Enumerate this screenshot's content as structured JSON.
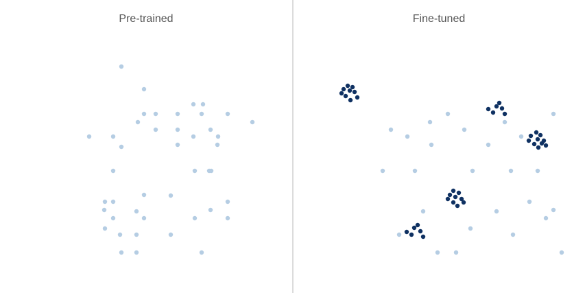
{
  "colors": {
    "light": "#b5cde3",
    "dark": "#0f3162",
    "divider": "#d0d0d0",
    "title": "#555555"
  },
  "chart_data": [
    {
      "type": "scatter",
      "title": "Pre-trained",
      "xlim": [
        0,
        426
      ],
      "ylim": [
        0,
        427
      ],
      "series": [
        {
          "color": "#b5cde3",
          "points": [
            [
              177,
              97
            ],
            [
              210,
              130
            ],
            [
              210,
              166
            ],
            [
              227,
              166
            ],
            [
              259,
              166
            ],
            [
              282,
              152
            ],
            [
              296,
              152
            ],
            [
              294,
              166
            ],
            [
              332,
              166
            ],
            [
              201,
              178
            ],
            [
              368,
              178
            ],
            [
              227,
              189
            ],
            [
              259,
              189
            ],
            [
              307,
              189
            ],
            [
              130,
              199
            ],
            [
              165,
              199
            ],
            [
              282,
              199
            ],
            [
              318,
              199
            ],
            [
              177,
              214
            ],
            [
              259,
              211
            ],
            [
              317,
              211
            ],
            [
              165,
              249
            ],
            [
              284,
              249
            ],
            [
              305,
              249
            ],
            [
              308,
              249
            ],
            [
              210,
              284
            ],
            [
              249,
              285
            ],
            [
              153,
              294
            ],
            [
              165,
              294
            ],
            [
              332,
              294
            ],
            [
              152,
              306
            ],
            [
              199,
              308
            ],
            [
              307,
              306
            ],
            [
              165,
              318
            ],
            [
              210,
              318
            ],
            [
              284,
              318
            ],
            [
              332,
              318
            ],
            [
              153,
              333
            ],
            [
              175,
              342
            ],
            [
              199,
              342
            ],
            [
              249,
              342
            ],
            [
              177,
              368
            ],
            [
              199,
              368
            ],
            [
              294,
              368
            ]
          ]
        }
      ]
    },
    {
      "type": "scatter",
      "title": "Fine-tuned",
      "xlim": [
        426,
        853
      ],
      "ylim": [
        0,
        427
      ],
      "series": [
        {
          "color": "#b5cde3",
          "points": [
            [
              653,
              166
            ],
            [
              807,
              166
            ],
            [
              627,
              178
            ],
            [
              736,
              178
            ],
            [
              570,
              189
            ],
            [
              677,
              189
            ],
            [
              594,
              199
            ],
            [
              760,
              199
            ],
            [
              629,
              211
            ],
            [
              712,
              211
            ],
            [
              558,
              249
            ],
            [
              605,
              249
            ],
            [
              689,
              249
            ],
            [
              745,
              249
            ],
            [
              784,
              249
            ],
            [
              772,
              294
            ],
            [
              617,
              308
            ],
            [
              724,
              308
            ],
            [
              807,
              306
            ],
            [
              796,
              318
            ],
            [
              686,
              333
            ],
            [
              582,
              342
            ],
            [
              748,
              342
            ],
            [
              638,
              368
            ],
            [
              665,
              368
            ],
            [
              819,
              368
            ]
          ]
        },
        {
          "color": "#0f3162",
          "points": [
            [
              507,
              125
            ],
            [
              501,
              130
            ],
            [
              514,
              127
            ],
            [
              510,
              132
            ],
            [
              498,
              136
            ],
            [
              517,
              134
            ],
            [
              504,
              140
            ],
            [
              521,
              142
            ],
            [
              511,
              146
            ],
            [
              728,
              150
            ],
            [
              724,
              155
            ],
            [
              732,
              158
            ],
            [
              712,
              159
            ],
            [
              719,
              164
            ],
            [
              736,
              166
            ],
            [
              782,
              193
            ],
            [
              774,
              198
            ],
            [
              788,
              197
            ],
            [
              771,
              205
            ],
            [
              784,
              203
            ],
            [
              793,
              205
            ],
            [
              779,
              210
            ],
            [
              790,
              209
            ],
            [
              796,
              212
            ],
            [
              785,
              215
            ],
            [
              661,
              278
            ],
            [
              656,
              284
            ],
            [
              669,
              281
            ],
            [
              664,
              287
            ],
            [
              653,
              290
            ],
            [
              673,
              290
            ],
            [
              661,
              295
            ],
            [
              676,
              295
            ],
            [
              667,
              300
            ],
            [
              609,
              328
            ],
            [
              604,
              332
            ],
            [
              613,
              337
            ],
            [
              593,
              338
            ],
            [
              600,
              342
            ],
            [
              617,
              345
            ]
          ]
        }
      ]
    }
  ]
}
